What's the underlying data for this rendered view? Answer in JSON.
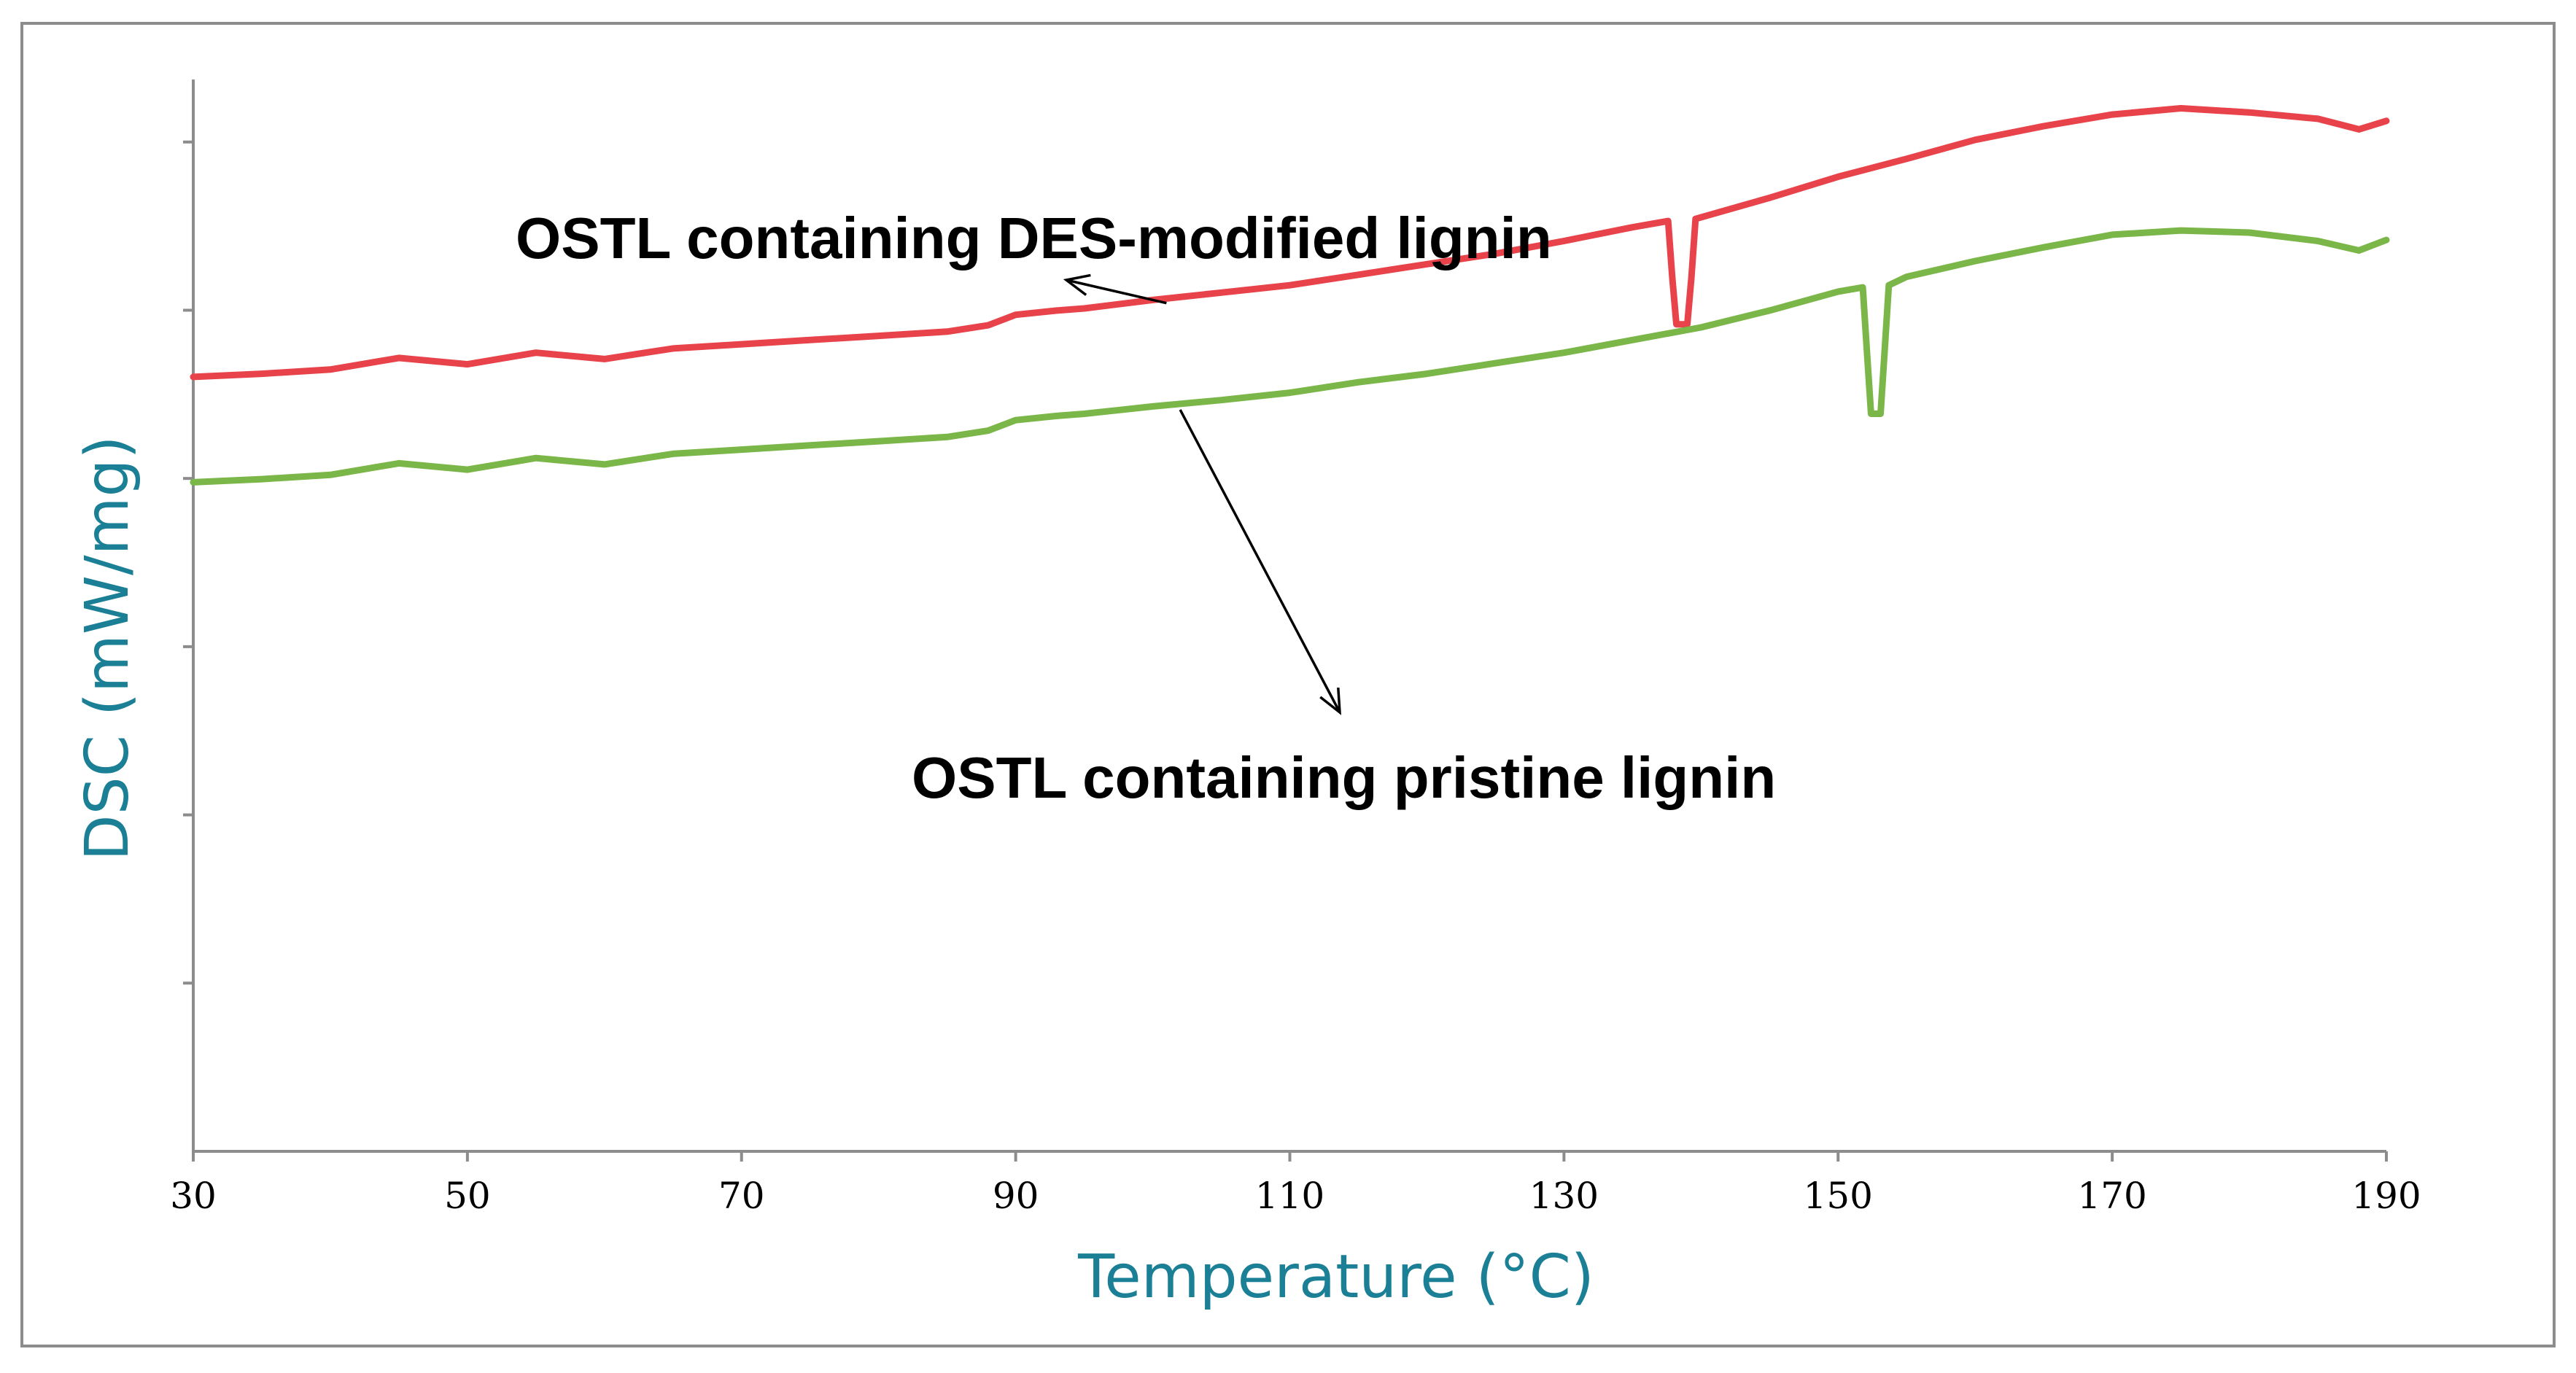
{
  "chart_data": {
    "type": "line",
    "title": "",
    "xlabel": "Temperature (°C)",
    "ylabel": "DSC (mW/mg)",
    "xlim": [
      30,
      190
    ],
    "ylim": [
      0,
      10
    ],
    "x_ticks": [
      "30",
      "50",
      "70",
      "90",
      "110",
      "130",
      "150",
      "170",
      "190"
    ],
    "y_tick_count": 6,
    "grid": false,
    "label_color": "#1b7f95",
    "series": [
      {
        "name": "OSTL containing DES-modified lignin",
        "color": "#e8434a",
        "points": [
          [
            30,
            7.35
          ],
          [
            35,
            7.38
          ],
          [
            40,
            7.42
          ],
          [
            45,
            7.53
          ],
          [
            50,
            7.47
          ],
          [
            55,
            7.58
          ],
          [
            60,
            7.52
          ],
          [
            65,
            7.62
          ],
          [
            70,
            7.66
          ],
          [
            75,
            7.7
          ],
          [
            80,
            7.74
          ],
          [
            85,
            7.78
          ],
          [
            88,
            7.84
          ],
          [
            90,
            7.94
          ],
          [
            93,
            7.98
          ],
          [
            95,
            8.0
          ],
          [
            100,
            8.08
          ],
          [
            105,
            8.15
          ],
          [
            110,
            8.22
          ],
          [
            115,
            8.32
          ],
          [
            120,
            8.42
          ],
          [
            125,
            8.52
          ],
          [
            130,
            8.64
          ],
          [
            135,
            8.77
          ],
          [
            137.6,
            8.83
          ],
          [
            137.9,
            8.3
          ],
          [
            138.2,
            7.85
          ],
          [
            139,
            7.85
          ],
          [
            139.3,
            8.3
          ],
          [
            139.6,
            8.85
          ],
          [
            145,
            9.05
          ],
          [
            150,
            9.25
          ],
          [
            155,
            9.42
          ],
          [
            160,
            9.6
          ],
          [
            165,
            9.73
          ],
          [
            170,
            9.84
          ],
          [
            175,
            9.9
          ],
          [
            180,
            9.86
          ],
          [
            185,
            9.8
          ],
          [
            188,
            9.7
          ],
          [
            190,
            9.78
          ]
        ]
      },
      {
        "name": "OSTL containing pristine lignin",
        "color": "#7ab648",
        "points": [
          [
            30,
            6.35
          ],
          [
            35,
            6.38
          ],
          [
            40,
            6.42
          ],
          [
            45,
            6.53
          ],
          [
            50,
            6.47
          ],
          [
            55,
            6.58
          ],
          [
            60,
            6.52
          ],
          [
            65,
            6.62
          ],
          [
            70,
            6.66
          ],
          [
            75,
            6.7
          ],
          [
            80,
            6.74
          ],
          [
            85,
            6.78
          ],
          [
            88,
            6.84
          ],
          [
            90,
            6.94
          ],
          [
            93,
            6.98
          ],
          [
            95,
            7.0
          ],
          [
            100,
            7.07
          ],
          [
            105,
            7.13
          ],
          [
            110,
            7.2
          ],
          [
            115,
            7.3
          ],
          [
            120,
            7.38
          ],
          [
            125,
            7.48
          ],
          [
            130,
            7.58
          ],
          [
            135,
            7.7
          ],
          [
            140,
            7.82
          ],
          [
            145,
            7.98
          ],
          [
            150,
            8.16
          ],
          [
            151.8,
            8.2
          ],
          [
            152.1,
            7.6
          ],
          [
            152.4,
            7.0
          ],
          [
            153.1,
            7.0
          ],
          [
            153.4,
            7.6
          ],
          [
            153.7,
            8.22
          ],
          [
            155,
            8.3
          ],
          [
            160,
            8.45
          ],
          [
            165,
            8.58
          ],
          [
            170,
            8.7
          ],
          [
            175,
            8.74
          ],
          [
            180,
            8.72
          ],
          [
            185,
            8.64
          ],
          [
            188,
            8.55
          ],
          [
            190,
            8.65
          ]
        ]
      }
    ],
    "annotations": [
      {
        "text": "OSTL containing DES-modified lignin",
        "series": 0
      },
      {
        "text": "OSTL containing pristine lignin",
        "series": 1
      }
    ]
  }
}
